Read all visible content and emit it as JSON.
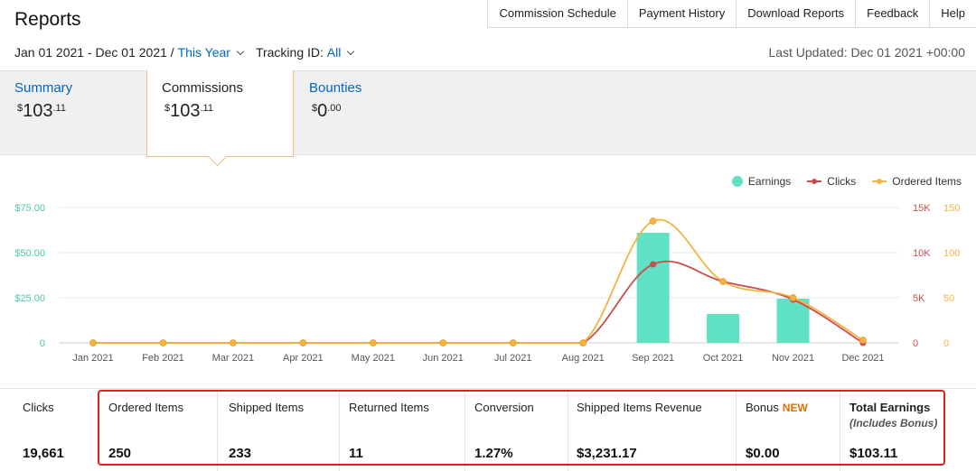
{
  "title": "Reports",
  "top_nav": [
    "Commission Schedule",
    "Payment History",
    "Download Reports",
    "Feedback",
    "Help"
  ],
  "date_range": {
    "range": "Jan 01 2021 - Dec 01 2021 /",
    "preset": "This Year",
    "tracking_label": "Tracking ID:",
    "tracking_value": "All"
  },
  "last_updated": "Last Updated: Dec 01 2021 +00:00",
  "summary_tabs": [
    {
      "label": "Summary",
      "currency": "$",
      "dollars": "103",
      "cents": ".11"
    },
    {
      "label": "Commissions",
      "currency": "$",
      "dollars": "103",
      "cents": ".11"
    },
    {
      "label": "Bounties",
      "currency": "$",
      "dollars": "0",
      "cents": ".00"
    }
  ],
  "legend": [
    {
      "name": "Earnings",
      "color": "#5fe1c4"
    },
    {
      "name": "Clicks",
      "color": "#cc4c4c"
    },
    {
      "name": "Ordered Items",
      "color": "#f2b441"
    }
  ],
  "chart_data": {
    "type": "bar",
    "categories": [
      "Jan 2021",
      "Feb 2021",
      "Mar 2021",
      "Apr 2021",
      "May 2021",
      "Jun 2021",
      "Jul 2021",
      "Aug 2021",
      "Sep 2021",
      "Oct 2021",
      "Nov 2021",
      "Dec 2021"
    ],
    "series": [
      {
        "name": "Earnings",
        "type": "bar",
        "axis": "left",
        "values": [
          0,
          0,
          0,
          0,
          0,
          0,
          0,
          0,
          61,
          16,
          24.5,
          0
        ]
      },
      {
        "name": "Clicks",
        "type": "line",
        "axis": "right1",
        "values": [
          0,
          0,
          0,
          0,
          0,
          0,
          0,
          0,
          8700,
          6800,
          4800,
          0
        ]
      },
      {
        "name": "Ordered Items",
        "type": "line",
        "axis": "right2",
        "values": [
          0,
          0,
          0,
          0,
          0,
          0,
          0,
          0,
          135,
          68,
          50,
          3
        ]
      }
    ],
    "y_left": {
      "ticks": [
        "0",
        "$25.00",
        "$50.00",
        "$75.00"
      ],
      "range": [
        0,
        75
      ]
    },
    "y_right1": {
      "ticks": [
        "0",
        "5K",
        "10K",
        "15K"
      ],
      "range": [
        0,
        15000
      ]
    },
    "y_right2": {
      "ticks": [
        "0",
        "50",
        "100",
        "150"
      ],
      "range": [
        0,
        150
      ]
    },
    "grid": true,
    "legend_position": "top-right"
  },
  "stats": [
    {
      "label": "Clicks",
      "value": "19,661"
    },
    {
      "label": "Ordered Items",
      "value": "250"
    },
    {
      "label": "Shipped Items",
      "value": "233"
    },
    {
      "label": "Returned Items",
      "value": "11"
    },
    {
      "label": "Conversion",
      "value": "1.27%"
    },
    {
      "label": "Shipped Items Revenue",
      "value": "$3,231.17"
    },
    {
      "label": "Bonus",
      "badge": "NEW",
      "value": "$0.00"
    },
    {
      "label": "Total Earnings",
      "sublabel": "(Includes Bonus)",
      "value": "$103.11"
    }
  ],
  "colors": {
    "link": "#0066c0",
    "earnings": "#5fe1c4",
    "clicks": "#cc4c4c",
    "ordered": "#f2b441",
    "highlight": "#e0211b"
  }
}
